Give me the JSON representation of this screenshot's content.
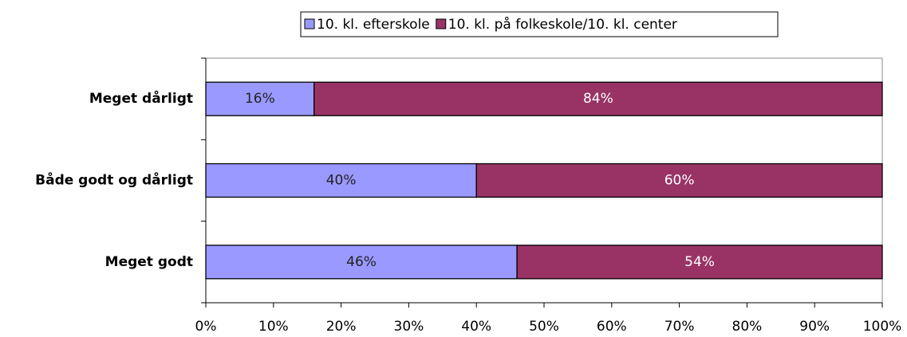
{
  "chart_data": {
    "type": "stacked_barh",
    "categories": [
      "Meget dårligt",
      "Både godt og dårligt",
      "Meget godt"
    ],
    "series": [
      {
        "name": "10. kl. efterskole",
        "color": "#9999ff",
        "label_color": "#222222",
        "values": [
          16,
          40,
          46
        ],
        "value_labels": [
          "16%",
          "40%",
          "46%"
        ]
      },
      {
        "name": "10. kl. på folkeskole/10. kl. center",
        "color": "#993366",
        "label_color": "#ffffff",
        "values": [
          84,
          60,
          54
        ],
        "value_labels": [
          "84%",
          "60%",
          "54%"
        ]
      }
    ],
    "xlim": [
      0,
      100
    ],
    "xticks": [
      {
        "value": 0,
        "label": "0%"
      },
      {
        "value": 10,
        "label": "10%"
      },
      {
        "value": 20,
        "label": "20%"
      },
      {
        "value": 30,
        "label": "30%"
      },
      {
        "value": 40,
        "label": "40%"
      },
      {
        "value": 50,
        "label": "50%"
      },
      {
        "value": 60,
        "label": "60%"
      },
      {
        "value": 70,
        "label": "70%"
      },
      {
        "value": 80,
        "label": "80%"
      },
      {
        "value": 90,
        "label": "90%"
      },
      {
        "value": 100,
        "label": "100%"
      }
    ],
    "legend": "top"
  }
}
